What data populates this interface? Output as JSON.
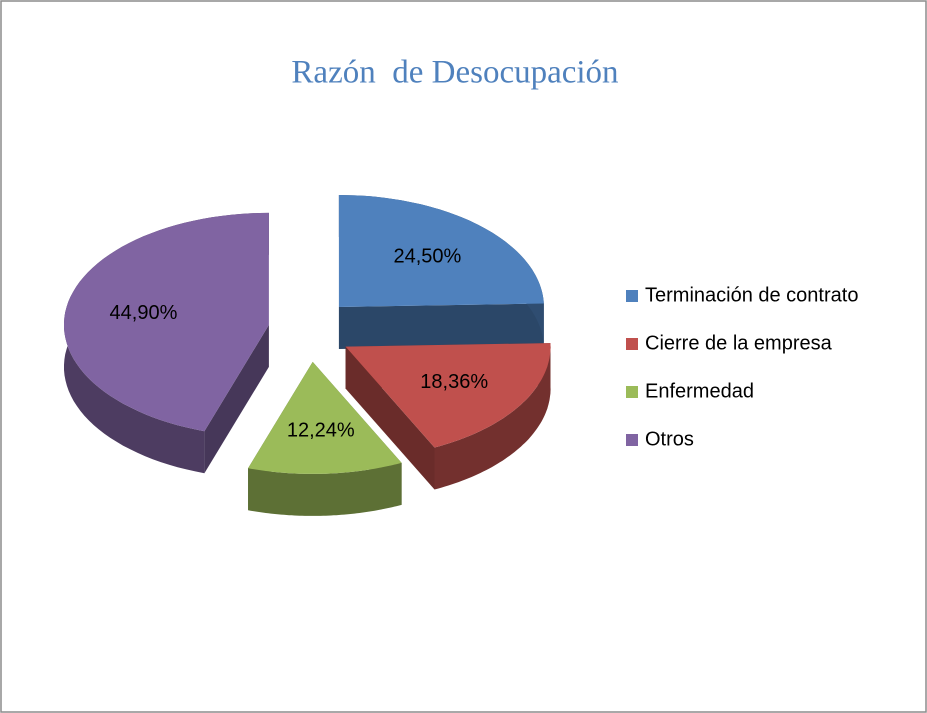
{
  "chart_data": {
    "type": "pie",
    "title": "Razón  de Desocupación",
    "categories": [
      "Terminación de contrato",
      "Cierre de la empresa",
      "Enfermedad",
      "Otros"
    ],
    "values": [
      24.5,
      18.36,
      12.24,
      44.9
    ],
    "value_labels": [
      "24,50%",
      "18,36%",
      "12,24%",
      "44,90%"
    ],
    "colors": [
      "#4f81bd",
      "#c0504d",
      "#9bbb59",
      "#8064a2"
    ],
    "legend": "right"
  }
}
